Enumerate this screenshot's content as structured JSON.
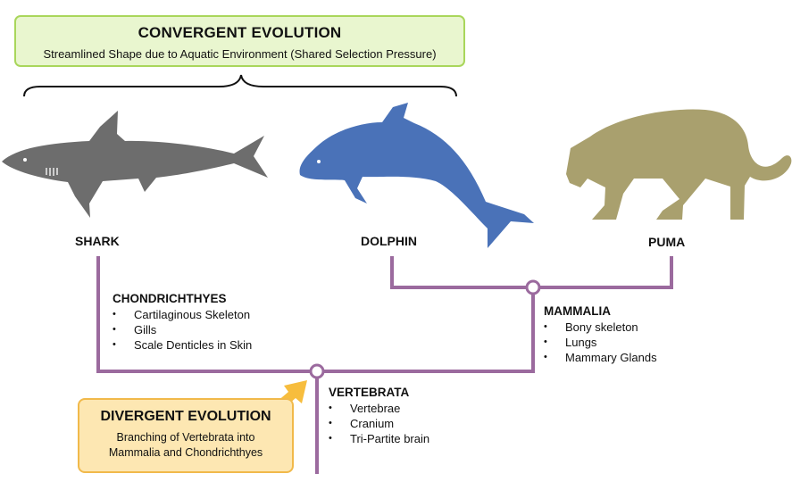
{
  "convergent": {
    "title": "CONVERGENT EVOLUTION",
    "subtitle": "Streamlined Shape due to Aquatic Environment (Shared Selection Pressure)"
  },
  "divergent": {
    "title": "DIVERGENT EVOLUTION",
    "subtitle_line1": "Branching of Vertebrata into",
    "subtitle_line2": "Mammalia and Chondrichthyes"
  },
  "animals": {
    "shark": "SHARK",
    "dolphin": "DOLPHIN",
    "puma": "PUMA"
  },
  "groups": {
    "chondrichthyes": {
      "title": "CHONDRICHTHYES",
      "traits": [
        "Cartilaginous Skeleton",
        "Gills",
        "Scale Denticles in Skin"
      ]
    },
    "mammalia": {
      "title": "MAMMALIA",
      "traits": [
        "Bony skeleton",
        "Lungs",
        "Mammary Glands"
      ]
    },
    "vertebrata": {
      "title": "VERTEBRATA",
      "traits": [
        "Vertebrae",
        "Cranium",
        "Tri-Partite brain"
      ]
    }
  },
  "colors": {
    "tree": "#9b6a9e",
    "shark": "#6d6d6d",
    "dolphin": "#4a72b8",
    "puma": "#a9a06e",
    "arrow": "#f7bd3d"
  }
}
